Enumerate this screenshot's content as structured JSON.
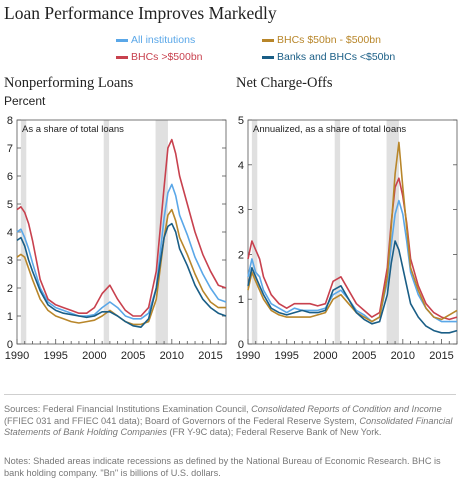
{
  "title": "Loan Performance Improves Markedly",
  "colors": {
    "all": "#5aa7e8",
    "bhc_large": "#c8414e",
    "bhc_mid": "#b8862a",
    "small": "#1a5e86",
    "recession": "#e0e0e0"
  },
  "legend": {
    "all": "All institutions",
    "bhc_large": "BHCs >$500bn",
    "bhc_mid": "BHCs $50bn - $500bn",
    "small": "Banks and BHCs <$50bn"
  },
  "footnotes": {
    "sources_prefix": "Sources: Federal Financial Institutions Examination Council, ",
    "sources_italic1": "Consolidated Reports of Condition and Income",
    "sources_mid": " (FFIEC 031 and FFIEC 041 data); Board of Governors of the Federal Reserve System, ",
    "sources_italic2": "Consolidated Financial Statements of Bank Holding Companies",
    "sources_suffix": " (FR Y-9C data); Federal Reserve Bank of New York.",
    "notes": "Notes: Shaded areas indicate recessions as defined by the National Bureau of Economic Research. BHC is bank holding company. \"Bn\" is billions of U.S. dollars."
  },
  "chart_data": [
    {
      "type": "line",
      "title": "Nonperforming Loans",
      "ylabel": "Percent",
      "annotation": "As a share of total loans",
      "xlim": [
        1990,
        2017
      ],
      "ylim": [
        0,
        8
      ],
      "yticks": [
        0,
        1,
        2,
        3,
        4,
        5,
        6,
        7,
        8
      ],
      "xticks": [
        1990,
        1995,
        2000,
        2005,
        2010,
        2015
      ],
      "recessions": [
        [
          1990.5,
          1991.2
        ],
        [
          2001.2,
          2001.9
        ],
        [
          2007.9,
          2009.5
        ]
      ],
      "series": [
        {
          "key": "all",
          "name": "All institutions",
          "x": [
            1990,
            1990.5,
            1991,
            1991.5,
            1992,
            1993,
            1994,
            1995,
            1996,
            1997,
            1998,
            1999,
            2000,
            2001,
            2002,
            2003,
            2004,
            2005,
            2006,
            2007,
            2008,
            2009,
            2009.5,
            2010,
            2010.5,
            2011,
            2012,
            2013,
            2014,
            2015,
            2016,
            2017
          ],
          "y": [
            4.0,
            4.1,
            3.8,
            3.4,
            2.9,
            2.0,
            1.5,
            1.3,
            1.2,
            1.1,
            1.0,
            1.0,
            1.05,
            1.3,
            1.5,
            1.3,
            1.0,
            0.9,
            0.9,
            1.1,
            2.0,
            4.5,
            5.4,
            5.7,
            5.3,
            4.6,
            3.9,
            3.1,
            2.5,
            2.0,
            1.6,
            1.5
          ]
        },
        {
          "key": "bhc_large",
          "name": "BHCs >$500bn",
          "x": [
            1990,
            1990.5,
            1991,
            1991.5,
            1992,
            1993,
            1994,
            1995,
            1996,
            1997,
            1998,
            1999,
            2000,
            2001,
            2002,
            2003,
            2004,
            2005,
            2006,
            2007,
            2008,
            2009,
            2009.5,
            2010,
            2010.5,
            2011,
            2012,
            2013,
            2014,
            2015,
            2016,
            2017
          ],
          "y": [
            4.8,
            4.9,
            4.7,
            4.3,
            3.7,
            2.3,
            1.6,
            1.4,
            1.3,
            1.2,
            1.1,
            1.1,
            1.3,
            1.8,
            2.1,
            1.6,
            1.2,
            1.0,
            1.0,
            1.3,
            2.6,
            5.6,
            7.0,
            7.3,
            6.8,
            6.0,
            5.0,
            4.0,
            3.2,
            2.6,
            2.1,
            2.0
          ]
        },
        {
          "key": "bhc_mid",
          "name": "BHCs $50bn - $500bn",
          "x": [
            1990,
            1990.5,
            1991,
            1991.5,
            1992,
            1993,
            1994,
            1995,
            1996,
            1997,
            1998,
            1999,
            2000,
            2001,
            2002,
            2003,
            2004,
            2005,
            2006,
            2007,
            2008,
            2009,
            2009.5,
            2010,
            2010.5,
            2011,
            2012,
            2013,
            2014,
            2015,
            2016,
            2017
          ],
          "y": [
            3.1,
            3.2,
            3.1,
            2.7,
            2.3,
            1.6,
            1.2,
            1.0,
            0.9,
            0.8,
            0.75,
            0.8,
            0.85,
            1.0,
            1.2,
            1.0,
            0.8,
            0.7,
            0.7,
            0.8,
            1.6,
            3.8,
            4.6,
            4.8,
            4.4,
            3.8,
            3.2,
            2.5,
            1.9,
            1.5,
            1.3,
            1.3
          ]
        },
        {
          "key": "small",
          "name": "Banks and BHCs <$50bn",
          "x": [
            1990,
            1990.5,
            1991,
            1991.5,
            1992,
            1993,
            1994,
            1995,
            1996,
            1997,
            1998,
            1999,
            2000,
            2001,
            2002,
            2003,
            2004,
            2005,
            2006,
            2007,
            2008,
            2009,
            2009.5,
            2010,
            2010.5,
            2011,
            2012,
            2013,
            2014,
            2015,
            2016,
            2017
          ],
          "y": [
            3.7,
            3.8,
            3.5,
            3.0,
            2.6,
            1.9,
            1.4,
            1.2,
            1.1,
            1.05,
            1.0,
            0.95,
            1.0,
            1.15,
            1.15,
            1.0,
            0.8,
            0.65,
            0.6,
            0.9,
            2.0,
            3.8,
            4.2,
            4.3,
            4.0,
            3.4,
            2.8,
            2.1,
            1.6,
            1.3,
            1.1,
            1.0
          ]
        }
      ]
    },
    {
      "type": "line",
      "title": "Net Charge-Offs",
      "annotation": "Annualized, as a share of total loans",
      "xlim": [
        1990,
        2017
      ],
      "ylim": [
        0,
        5
      ],
      "yticks": [
        0,
        1,
        2,
        3,
        4,
        5
      ],
      "xticks": [
        1990,
        1995,
        2000,
        2005,
        2010,
        2015
      ],
      "recessions": [
        [
          1990.5,
          1991.2
        ],
        [
          2001.2,
          2001.9
        ],
        [
          2007.9,
          2009.5
        ]
      ],
      "series": [
        {
          "key": "all",
          "name": "All institutions",
          "x": [
            1990,
            1990.5,
            1991,
            1991.5,
            1992,
            1993,
            1994,
            1995,
            1996,
            1997,
            1998,
            1999,
            2000,
            2001,
            2002,
            2003,
            2004,
            2005,
            2006,
            2007,
            2008,
            2008.5,
            2009,
            2009.5,
            2010,
            2010.5,
            2011,
            2012,
            2013,
            2014,
            2015,
            2016,
            2017
          ],
          "y": [
            1.5,
            1.9,
            1.6,
            1.5,
            1.2,
            0.9,
            0.8,
            0.7,
            0.8,
            0.75,
            0.75,
            0.75,
            0.8,
            1.1,
            1.2,
            1.0,
            0.75,
            0.65,
            0.5,
            0.6,
            1.4,
            2.2,
            2.9,
            3.2,
            2.9,
            2.3,
            1.6,
            1.1,
            0.8,
            0.6,
            0.5,
            0.5,
            0.5
          ]
        },
        {
          "key": "bhc_large",
          "name": "BHCs >$500bn",
          "x": [
            1990,
            1990.5,
            1991,
            1991.5,
            1992,
            1993,
            1994,
            1995,
            1996,
            1997,
            1998,
            1999,
            2000,
            2001,
            2002,
            2003,
            2004,
            2005,
            2006,
            2007,
            2008,
            2008.5,
            2009,
            2009.5,
            2010,
            2010.5,
            2011,
            2012,
            2013,
            2014,
            2015,
            2016,
            2017
          ],
          "y": [
            1.9,
            2.3,
            2.1,
            1.9,
            1.5,
            1.1,
            0.9,
            0.8,
            0.9,
            0.9,
            0.9,
            0.85,
            0.9,
            1.4,
            1.5,
            1.2,
            0.9,
            0.75,
            0.6,
            0.7,
            1.7,
            2.7,
            3.5,
            3.7,
            3.3,
            2.7,
            1.9,
            1.3,
            0.9,
            0.7,
            0.6,
            0.55,
            0.6
          ]
        },
        {
          "key": "bhc_mid",
          "name": "BHCs $50bn - $500bn",
          "x": [
            1990,
            1990.5,
            1991,
            1991.5,
            1992,
            1993,
            1994,
            1995,
            1996,
            1997,
            1998,
            1999,
            2000,
            2001,
            2002,
            2003,
            2004,
            2005,
            2006,
            2007,
            2008,
            2008.5,
            2009,
            2009.5,
            2010,
            2010.5,
            2011,
            2012,
            2013,
            2014,
            2015,
            2016,
            2017
          ],
          "y": [
            1.2,
            1.6,
            1.4,
            1.2,
            1.0,
            0.75,
            0.65,
            0.6,
            0.6,
            0.6,
            0.6,
            0.65,
            0.7,
            1.0,
            1.1,
            0.9,
            0.7,
            0.6,
            0.5,
            0.6,
            1.5,
            2.6,
            3.8,
            4.5,
            3.5,
            2.6,
            1.7,
            1.2,
            0.8,
            0.6,
            0.55,
            0.65,
            0.75
          ]
        },
        {
          "key": "small",
          "name": "Banks and BHCs <$50bn",
          "x": [
            1990,
            1990.5,
            1991,
            1991.5,
            1992,
            1993,
            1994,
            1995,
            1996,
            1997,
            1998,
            1999,
            2000,
            2001,
            2002,
            2003,
            2004,
            2005,
            2006,
            2007,
            2008,
            2008.5,
            2009,
            2009.5,
            2010,
            2010.5,
            2011,
            2012,
            2013,
            2014,
            2015,
            2016,
            2017
          ],
          "y": [
            1.3,
            1.7,
            1.5,
            1.3,
            1.1,
            0.8,
            0.7,
            0.65,
            0.7,
            0.75,
            0.7,
            0.7,
            0.75,
            1.2,
            1.3,
            1.0,
            0.7,
            0.55,
            0.45,
            0.5,
            1.1,
            1.8,
            2.3,
            2.1,
            1.7,
            1.3,
            0.9,
            0.6,
            0.4,
            0.3,
            0.25,
            0.25,
            0.3
          ]
        }
      ]
    }
  ]
}
